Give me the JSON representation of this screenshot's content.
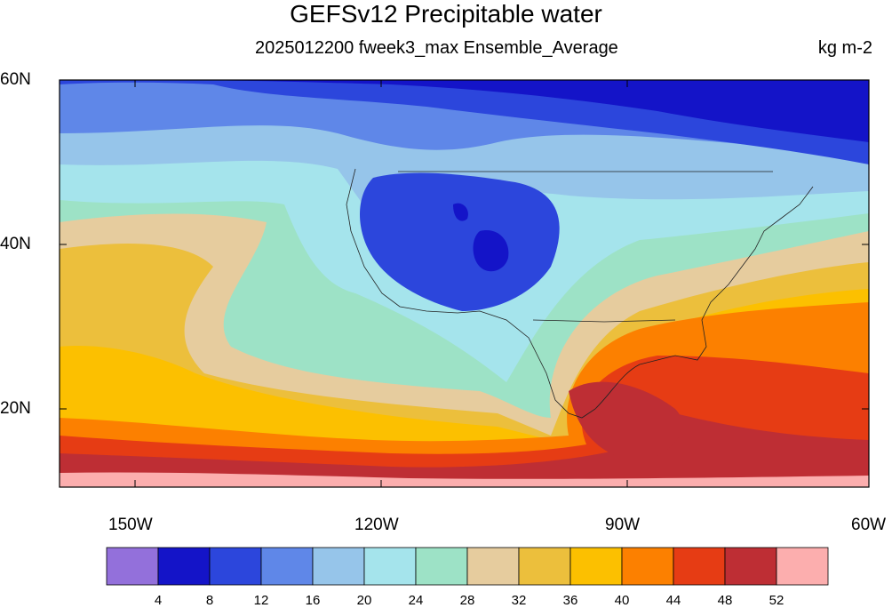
{
  "title": "GEFSv12 Precipitable water",
  "subtitle": "2025012200 fweek3_max Ensemble_Average",
  "units": "kg m-2",
  "axes": {
    "lat_labels": [
      "60N",
      "40N",
      "20N"
    ],
    "lon_labels": [
      "150W",
      "120W",
      "90W",
      "60W"
    ]
  },
  "colorbar": {
    "colors": [
      "#9370db",
      "#1414c8",
      "#2c46dc",
      "#5f87e8",
      "#96c5ea",
      "#a5e4ec",
      "#9de2c6",
      "#e6cc9e",
      "#ecbf3c",
      "#fcc000",
      "#fc8000",
      "#e63c14",
      "#be2e34",
      "#fcaeae"
    ],
    "labels": [
      "4",
      "8",
      "12",
      "16",
      "20",
      "24",
      "28",
      "32",
      "36",
      "40",
      "44",
      "48",
      "52"
    ]
  }
}
